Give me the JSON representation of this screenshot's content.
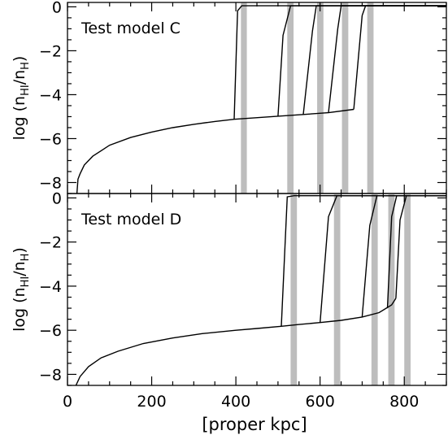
{
  "chart_data": [
    {
      "type": "line",
      "panel_label": "Test model C",
      "ylabel_main": "log (n",
      "ylabel_sub1": "HI",
      "ylabel_mid": "/n",
      "ylabel_sub2": "H",
      "ylabel_end": ")",
      "xlim": [
        0,
        900
      ],
      "ylim": [
        -8.5,
        0.2
      ],
      "yticks": [
        0,
        -2,
        -4,
        -6,
        -8
      ],
      "ytick_labels": [
        "0",
        "−2",
        "−4",
        "−6",
        "−8"
      ],
      "xticks": [
        0,
        200,
        400,
        600,
        800
      ],
      "shaded_bands": [
        [
          412,
          426
        ],
        [
          522,
          537
        ],
        [
          593,
          608
        ],
        [
          652,
          667
        ],
        [
          712,
          727
        ]
      ],
      "series": [
        {
          "x": [
            22,
            25,
            30,
            40,
            60,
            100,
            150,
            200,
            250,
            300,
            350,
            396
          ],
          "y": [
            -8.6,
            -7.85,
            -7.6,
            -7.2,
            -6.8,
            -6.3,
            -5.95,
            -5.7,
            -5.5,
            -5.35,
            -5.22,
            -5.12
          ]
        },
        {
          "x": [
            396,
            404,
            414,
            900
          ],
          "y": [
            -5.12,
            -0.18,
            0.05,
            0.05
          ]
        },
        {
          "x": [
            396,
            500,
            560,
            620,
            680
          ],
          "y": [
            -5.12,
            -4.98,
            -4.9,
            -4.82,
            -4.67
          ]
        },
        {
          "x": [
            500,
            512,
            530,
            900
          ],
          "y": [
            -4.98,
            -1.3,
            0.05,
            0.05
          ]
        },
        {
          "x": [
            560,
            582,
            591,
            900
          ],
          "y": [
            -4.9,
            -1.1,
            0.05,
            0.05
          ]
        },
        {
          "x": [
            620,
            642,
            650,
            900
          ],
          "y": [
            -4.82,
            -1.0,
            0.05,
            0.05
          ]
        },
        {
          "x": [
            680,
            700,
            708,
            900
          ],
          "y": [
            -4.67,
            -0.4,
            0.05,
            0.05
          ]
        }
      ]
    },
    {
      "type": "line",
      "panel_label": "Test model D",
      "ylabel_main": "log (n",
      "ylabel_sub1": "HI",
      "ylabel_mid": "/n",
      "ylabel_sub2": "H",
      "ylabel_end": ")",
      "xlabel": "[proper kpc]",
      "xlim": [
        0,
        900
      ],
      "ylim": [
        -8.5,
        0.2
      ],
      "yticks": [
        0,
        -2,
        -4,
        -6,
        -8
      ],
      "ytick_labels": [
        "0",
        "−2",
        "−4",
        "−6",
        "−8"
      ],
      "xticks": [
        0,
        200,
        400,
        600,
        800
      ],
      "xtick_labels": [
        "0",
        "200",
        "400",
        "600",
        "800"
      ],
      "shaded_bands": [
        [
          530,
          545
        ],
        [
          633,
          648
        ],
        [
          722,
          737
        ],
        [
          762,
          777
        ],
        [
          800,
          815
        ]
      ],
      "series": [
        {
          "x": [
            20,
            30,
            50,
            80,
            120,
            180,
            250,
            320,
            400,
            450,
            508
          ],
          "y": [
            -8.5,
            -8.1,
            -7.65,
            -7.25,
            -6.95,
            -6.6,
            -6.35,
            -6.15,
            -6.0,
            -5.92,
            -5.82
          ]
        },
        {
          "x": [
            508,
            522,
            538,
            900
          ],
          "y": [
            -5.82,
            0.05,
            0.1,
            0.1
          ]
        },
        {
          "x": [
            508,
            550,
            600,
            650,
            700,
            740,
            770,
            780
          ],
          "y": [
            -5.82,
            -5.74,
            -5.65,
            -5.55,
            -5.4,
            -5.2,
            -4.85,
            -4.55
          ]
        },
        {
          "x": [
            600,
            620,
            640,
            900
          ],
          "y": [
            -5.65,
            -0.85,
            0.1,
            0.1
          ]
        },
        {
          "x": [
            700,
            718,
            735,
            900
          ],
          "y": [
            -5.4,
            -1.25,
            0.1,
            0.1
          ]
        },
        {
          "x": [
            760,
            770,
            782,
            900
          ],
          "y": [
            -5.0,
            -0.85,
            0.1,
            0.1
          ]
        },
        {
          "x": [
            780,
            790,
            805,
            900
          ],
          "y": [
            -4.55,
            -1.0,
            0.1,
            0.1
          ]
        }
      ]
    }
  ]
}
